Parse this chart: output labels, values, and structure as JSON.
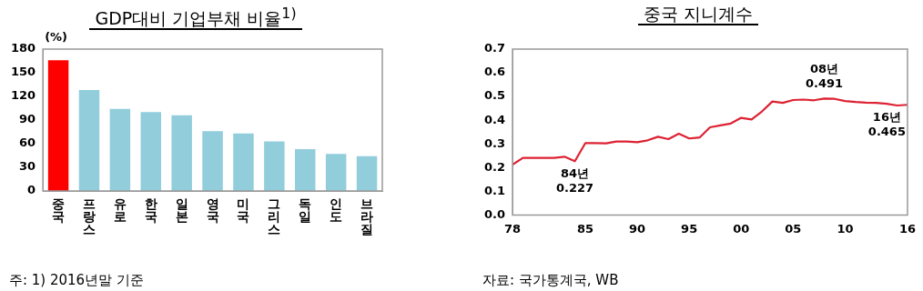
{
  "chart_data": [
    {
      "type": "bar",
      "title": "GDP대비 기업부채 비율$^{1)}$",
      "ylabel": "(%)",
      "categories": [
        "중국",
        "프랑스",
        "유로",
        "한국",
        "일본",
        "영국",
        "미국",
        "그리스",
        "독일",
        "인도",
        "브라질"
      ],
      "values": [
        166,
        128,
        104,
        100,
        96,
        76,
        73,
        63,
        53,
        47,
        44
      ],
      "colors": [
        "#ff0000",
        "#92cddc",
        "#92cddc",
        "#92cddc",
        "#92cddc",
        "#92cddc",
        "#92cddc",
        "#92cddc",
        "#92cddc",
        "#92cddc",
        "#92cddc"
      ],
      "ylim": [
        0,
        180
      ],
      "yticks": [
        0,
        30,
        60,
        90,
        120,
        150,
        180
      ],
      "grid": false,
      "legend": false,
      "annotations": [
        "주: 1) 2016년말 기준"
      ]
    },
    {
      "type": "line",
      "title": "중국 지니계수",
      "x": [
        1978,
        1979,
        1980,
        1981,
        1982,
        1983,
        1984,
        1985,
        1986,
        1987,
        1988,
        1989,
        1990,
        1991,
        1992,
        1993,
        1994,
        1995,
        1996,
        1997,
        1998,
        1999,
        2000,
        2001,
        2002,
        2003,
        2004,
        2005,
        2006,
        2007,
        2008,
        2009,
        2010,
        2011,
        2012,
        2013,
        2014,
        2015,
        2016
      ],
      "series": [
        {
          "color": "#dd2233",
          "values": [
            0.212,
            0.241,
            0.241,
            0.241,
            0.241,
            0.246,
            0.227,
            0.303,
            0.303,
            0.302,
            0.31,
            0.31,
            0.307,
            0.315,
            0.33,
            0.32,
            0.343,
            0.323,
            0.327,
            0.37,
            0.378,
            0.386,
            0.41,
            0.403,
            0.437,
            0.479,
            0.473,
            0.485,
            0.487,
            0.484,
            0.491,
            0.49,
            0.481,
            0.477,
            0.474,
            0.473,
            0.469,
            0.462,
            0.465
          ]
        }
      ],
      "xlim": [
        1978,
        2016
      ],
      "xticks": [
        {
          "value": 1978,
          "label": "78"
        },
        {
          "value": 1985,
          "label": "85"
        },
        {
          "value": 1990,
          "label": "90"
        },
        {
          "value": 1995,
          "label": "95"
        },
        {
          "value": 2000,
          "label": "00"
        },
        {
          "value": 2005,
          "label": "05"
        },
        {
          "value": 2010,
          "label": "10"
        },
        {
          "value": 2016,
          "label": "16"
        }
      ],
      "ylim": [
        0,
        0.7
      ],
      "yticks": [
        {
          "value": 0,
          "label": "0.0"
        },
        {
          "value": 0.1,
          "label": "0.1"
        },
        {
          "value": 0.2,
          "label": "0.2"
        },
        {
          "value": 0.3,
          "label": "0.3"
        },
        {
          "value": 0.4,
          "label": "0.4"
        },
        {
          "value": 0.5,
          "label": "0.5"
        },
        {
          "value": 0.6,
          "label": "0.6"
        },
        {
          "value": 0.7,
          "label": "0.7"
        }
      ],
      "grid": false,
      "legend": false,
      "marker": "none",
      "line_style": "solid",
      "annotations": [
        {
          "text": "84년\n0.227",
          "x": 1984,
          "y": 0.227
        },
        {
          "text": "08년\n0.491",
          "x": 2008,
          "y": 0.491
        },
        {
          "text": "16년\n0.465",
          "x": 2016,
          "y": 0.465
        },
        "자료: 국가통계국, WB"
      ]
    }
  ]
}
